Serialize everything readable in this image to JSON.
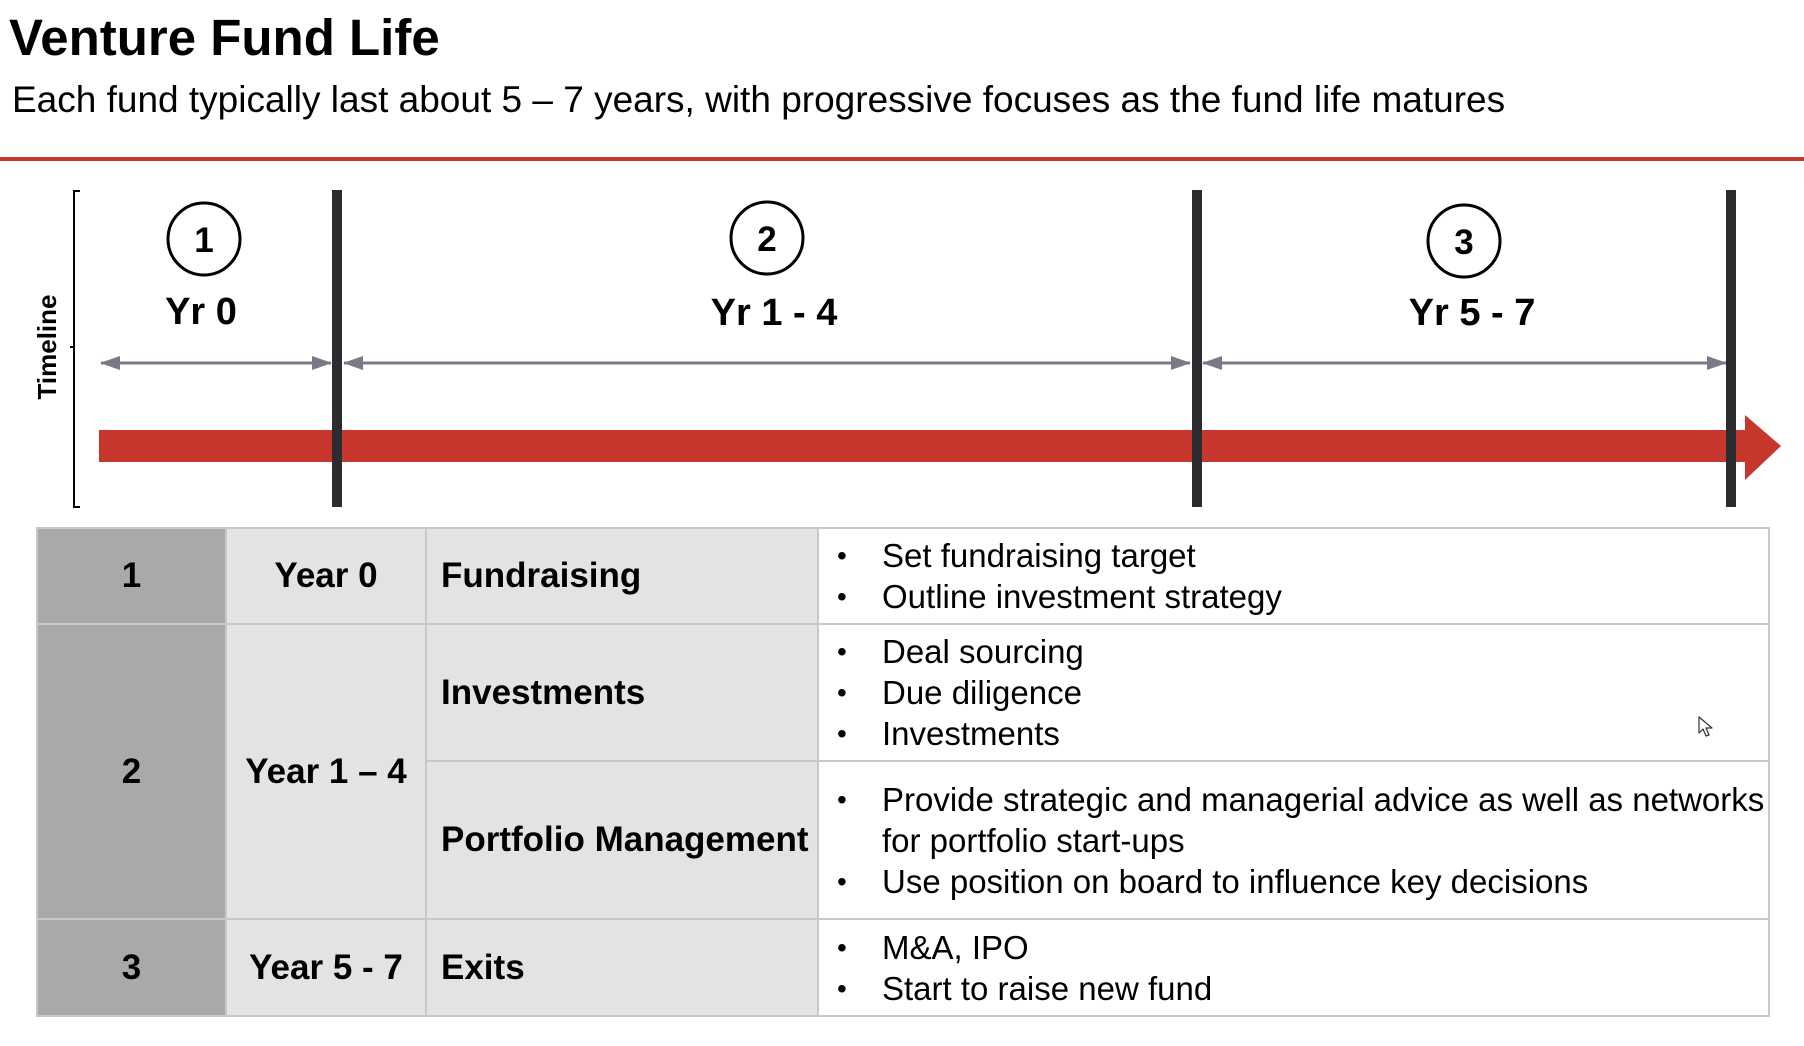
{
  "colors": {
    "accent_red": "#c8372d",
    "divider": "#2b2b30",
    "span_arrow": "#7a7a86",
    "num_cell_bg": "#a9a9ab",
    "label_cell_bg": "#e3e3e3"
  },
  "header": {
    "title": "Venture Fund Life",
    "subtitle": "Each fund typically last about 5 – 7 years, with progressive focuses as the fund life matures"
  },
  "timeline": {
    "axis_label": "Timeline",
    "phases": [
      {
        "number": "1",
        "period": "Yr 0"
      },
      {
        "number": "2",
        "period": "Yr 1 - 4"
      },
      {
        "number": "3",
        "period": "Yr 5 - 7"
      }
    ]
  },
  "table": {
    "rows": [
      {
        "number": "1",
        "year": "Year 0",
        "focus": "Fundraising",
        "details": [
          "Set fundraising target",
          "Outline investment strategy"
        ]
      },
      {
        "number": "2",
        "year": "Year 1 – 4",
        "focus": "Investments",
        "details": [
          "Deal sourcing",
          "Due diligence",
          "Investments"
        ]
      },
      {
        "focus": "Portfolio Management",
        "details": [
          "Provide strategic and managerial advice as well as networks for portfolio start-ups",
          "Use position on board to influence key decisions"
        ]
      },
      {
        "number": "3",
        "year": "Year 5 - 7",
        "focus": "Exits",
        "details": [
          "M&A, IPO",
          "Start to raise new fund"
        ]
      }
    ]
  }
}
